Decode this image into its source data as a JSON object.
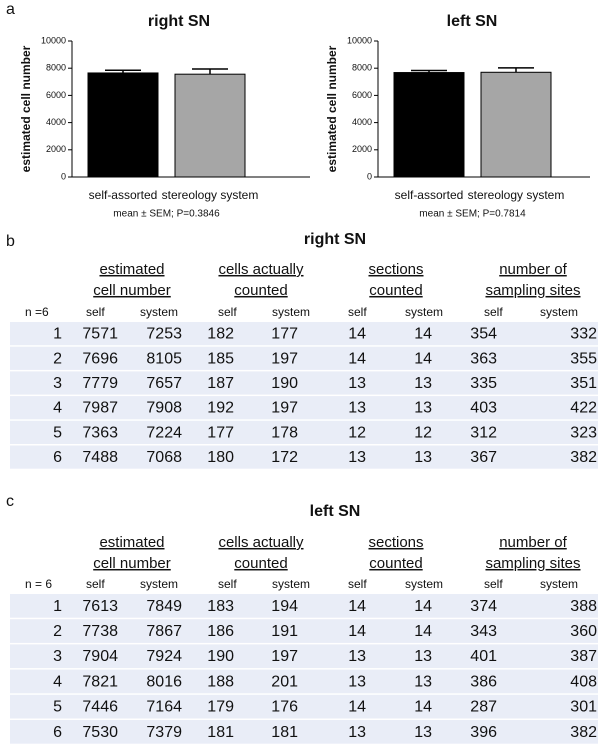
{
  "panels": [
    "a",
    "b",
    "c"
  ],
  "chart_data": [
    {
      "type": "bar",
      "title": "right SN",
      "y_label": "estimated cell number",
      "categories": [
        "self-assorted",
        "stereology system"
      ],
      "values": [
        7650,
        7560
      ],
      "errors": [
        200,
        380
      ],
      "colors": [
        "#000000",
        "#a6a6a6"
      ],
      "ylim": [
        0,
        10000
      ],
      "yticks": [
        0,
        2000,
        4000,
        6000,
        8000,
        10000
      ],
      "note": "mean ± SEM; P=0.3846"
    },
    {
      "type": "bar",
      "title": "left SN",
      "y_label": "estimated cell number",
      "categories": [
        "self-assorted",
        "stereology system"
      ],
      "values": [
        7680,
        7700
      ],
      "errors": [
        150,
        320
      ],
      "colors": [
        "#000000",
        "#a6a6a6"
      ],
      "ylim": [
        0,
        10000
      ],
      "yticks": [
        0,
        2000,
        4000,
        6000,
        8000,
        10000
      ],
      "note": "mean ± SEM; P=0.7814"
    }
  ],
  "tables": [
    {
      "title": "right SN",
      "groups": [
        [
          "estimated",
          "cell number"
        ],
        [
          "cells actually",
          "counted"
        ],
        [
          "sections",
          "counted"
        ],
        [
          "number of",
          "sampling sites"
        ]
      ],
      "n_label": "n =6",
      "columns": [
        "self",
        "system",
        "self",
        "system",
        "self",
        "system",
        "self",
        "system"
      ],
      "rows": [
        [
          1,
          7571,
          7253,
          182,
          177,
          14,
          14,
          354,
          332
        ],
        [
          2,
          7696,
          8105,
          185,
          197,
          14,
          14,
          363,
          355
        ],
        [
          3,
          7779,
          7657,
          187,
          190,
          13,
          13,
          335,
          351
        ],
        [
          4,
          7987,
          7908,
          192,
          197,
          13,
          13,
          403,
          422
        ],
        [
          5,
          7363,
          7224,
          177,
          178,
          12,
          12,
          312,
          323
        ],
        [
          6,
          7488,
          7068,
          180,
          172,
          13,
          13,
          367,
          382
        ]
      ]
    },
    {
      "title": "left SN",
      "groups": [
        [
          "estimated",
          "cell number"
        ],
        [
          "cells actually",
          "counted"
        ],
        [
          "sections",
          "counted"
        ],
        [
          "number of",
          "sampling sites"
        ]
      ],
      "n_label": "n = 6",
      "columns": [
        "self",
        "system",
        "self",
        "system",
        "self",
        "system",
        "self",
        "system"
      ],
      "rows": [
        [
          1,
          7613,
          7849,
          183,
          194,
          14,
          14,
          374,
          388
        ],
        [
          2,
          7738,
          7867,
          186,
          191,
          14,
          14,
          343,
          360
        ],
        [
          3,
          7904,
          7924,
          190,
          197,
          13,
          13,
          401,
          387
        ],
        [
          4,
          7821,
          8016,
          188,
          201,
          13,
          13,
          386,
          408
        ],
        [
          5,
          7446,
          7164,
          179,
          176,
          14,
          14,
          287,
          301
        ],
        [
          6,
          7530,
          7379,
          181,
          181,
          13,
          13,
          396,
          382
        ]
      ]
    }
  ]
}
